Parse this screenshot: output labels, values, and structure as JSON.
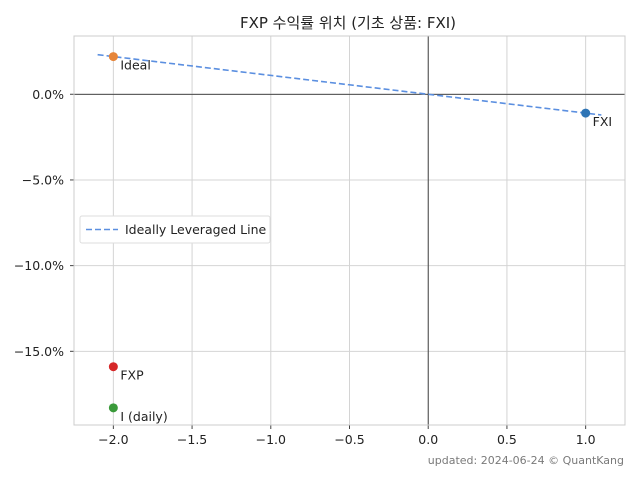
{
  "chart_data": {
    "type": "scatter",
    "title": "FXP 수익률 위치 (기초 상품: FXI)",
    "xlabel": "",
    "ylabel": "",
    "xlim": [
      -2.25,
      1.25
    ],
    "ylim": [
      -19.3,
      3.4
    ],
    "x_ticks": [
      -2.0,
      -1.5,
      -1.0,
      -0.5,
      0.0,
      0.5,
      1.0
    ],
    "x_tick_labels": [
      "−2.0",
      "−1.5",
      "−1.0",
      "−0.5",
      "0.0",
      "0.5",
      "1.0"
    ],
    "y_ticks": [
      0,
      -5,
      -10,
      -15
    ],
    "y_tick_labels": [
      "0.0%",
      "−5.0%",
      "−10.0%",
      "−15.0%"
    ],
    "grid": true,
    "legend_position": "center-left",
    "points": [
      {
        "label": "Ideal",
        "x": -2.0,
        "y": 2.2,
        "color": "#e6853a"
      },
      {
        "label": "FXI",
        "x": 1.0,
        "y": -1.1,
        "color": "#2e74b5"
      },
      {
        "label": "FXP",
        "x": -2.0,
        "y": -15.9,
        "color": "#d62728"
      },
      {
        "label": "I (daily)",
        "x": -2.0,
        "y": -18.3,
        "color": "#3a9a3a"
      }
    ],
    "line": {
      "name": "Ideally Leveraged Line",
      "x": [
        -2.1,
        1.1
      ],
      "y": [
        2.31,
        -1.21
      ],
      "color": "#5b8fe0"
    }
  },
  "footer": "updated: 2024-06-24 © QuantKang"
}
